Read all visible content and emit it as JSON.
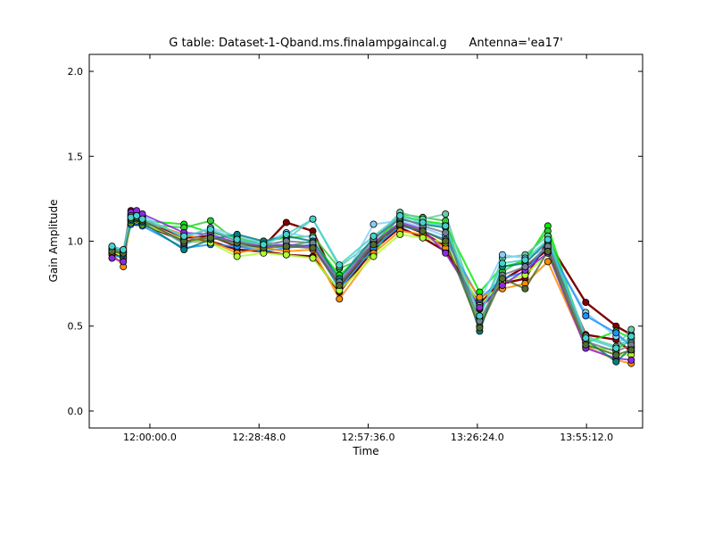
{
  "chart_data": {
    "type": "line",
    "title": "G table: Dataset-1-Qband.ms.finalampgaincal.g      Antenna='ea17'",
    "xlabel": "Time",
    "ylabel": "Gain Amplitude",
    "xlim": [
      "11:44:00",
      "14:10:00"
    ],
    "ylim": [
      -0.1,
      2.1
    ],
    "xticks": [
      "12:00:00.0",
      "12:28:48.0",
      "12:57:36.0",
      "13:26:24.0",
      "13:55:12.0"
    ],
    "yticks": [
      "0.0",
      "0.5",
      "1.0",
      "1.5",
      "2.0"
    ],
    "grid": false,
    "legend": "none",
    "x": [
      "11:50:00",
      "11:53:00",
      "11:55:00",
      "11:56:30",
      "11:58:00",
      "12:09:00",
      "12:16:00",
      "12:23:00",
      "12:30:00",
      "12:36:00",
      "12:43:00",
      "12:50:00",
      "12:59:00",
      "13:06:00",
      "13:12:00",
      "13:18:00",
      "13:27:00",
      "13:33:00",
      "13:39:00",
      "13:45:00",
      "13:55:00",
      "14:03:00",
      "14:07:00"
    ],
    "series": [
      {
        "color": "#800000",
        "marker": true,
        "values": [
          0.95,
          0.93,
          1.18,
          1.17,
          1.13,
          1.02,
          1.03,
          0.97,
          0.97,
          1.11,
          1.06,
          0.73,
          0.97,
          1.1,
          1.05,
          0.97,
          0.6,
          0.75,
          0.78,
          1.0,
          0.64,
          0.5,
          0.45
        ]
      },
      {
        "color": "#800000",
        "marker": true,
        "values": [
          0.93,
          0.9,
          1.15,
          1.14,
          1.1,
          1.0,
          1.0,
          0.95,
          0.94,
          0.92,
          0.91,
          0.7,
          0.95,
          1.08,
          1.02,
          0.94,
          0.63,
          0.77,
          0.85,
          0.95,
          0.45,
          0.42,
          0.35
        ]
      },
      {
        "color": "#00ee00",
        "marker": true,
        "values": [
          0.96,
          0.94,
          1.12,
          1.13,
          1.12,
          1.1,
          1.05,
          1.02,
          0.98,
          0.97,
          1.0,
          0.8,
          0.98,
          1.15,
          1.12,
          1.1,
          0.7,
          0.85,
          0.88,
          1.09,
          0.4,
          0.47,
          0.43
        ]
      },
      {
        "color": "#32cd32",
        "marker": true,
        "values": [
          0.94,
          0.92,
          1.1,
          1.12,
          1.1,
          1.08,
          1.12,
          1.0,
          1.0,
          1.02,
          1.03,
          0.84,
          0.92,
          1.16,
          1.14,
          1.12,
          0.5,
          0.82,
          0.9,
          1.06,
          0.38,
          0.36,
          0.42
        ]
      },
      {
        "color": "#66cdaa",
        "marker": true,
        "values": [
          0.95,
          0.93,
          1.13,
          1.15,
          1.14,
          0.98,
          1.03,
          0.98,
          0.95,
          1.01,
          1.13,
          0.85,
          1.0,
          1.17,
          1.13,
          1.16,
          0.55,
          0.9,
          0.92,
          1.03,
          0.44,
          0.38,
          0.48
        ]
      },
      {
        "color": "#87cefa",
        "marker": true,
        "values": [
          0.97,
          0.95,
          1.16,
          1.16,
          1.15,
          1.02,
          1.08,
          1.03,
          0.99,
          1.05,
          1.02,
          0.74,
          1.1,
          1.12,
          1.08,
          1.03,
          0.65,
          0.92,
          0.9,
          0.96,
          0.58,
          0.44,
          0.4
        ]
      },
      {
        "color": "#1e90ff",
        "marker": true,
        "values": [
          0.92,
          0.9,
          1.1,
          1.11,
          1.09,
          0.96,
          0.98,
          0.97,
          0.94,
          0.96,
          0.98,
          0.72,
          0.96,
          1.09,
          1.06,
          1.01,
          0.66,
          0.78,
          0.82,
          0.98,
          0.56,
          0.46,
          0.38
        ]
      },
      {
        "color": "#ff8c00",
        "marker": true,
        "values": [
          0.93,
          0.85,
          1.14,
          1.16,
          1.12,
          1.04,
          1.0,
          0.93,
          0.96,
          0.94,
          0.95,
          0.66,
          0.93,
          1.06,
          1.04,
          0.96,
          0.67,
          0.72,
          0.75,
          0.88,
          0.38,
          0.3,
          0.28
        ]
      },
      {
        "color": "#adff2f",
        "marker": true,
        "values": [
          0.94,
          0.91,
          1.11,
          1.12,
          1.1,
          1.01,
          0.99,
          0.91,
          0.93,
          0.92,
          0.9,
          0.71,
          0.91,
          1.04,
          1.02,
          0.99,
          0.62,
          0.76,
          0.8,
          0.93,
          0.4,
          0.33,
          0.33
        ]
      },
      {
        "color": "#8a2be2",
        "marker": true,
        "values": [
          0.9,
          0.88,
          1.17,
          1.18,
          1.16,
          1.05,
          1.04,
          0.99,
          0.97,
          0.98,
          0.97,
          0.75,
          0.99,
          1.11,
          1.07,
          0.93,
          0.61,
          0.74,
          0.83,
          0.93,
          0.37,
          0.31,
          0.3
        ]
      },
      {
        "color": "#008080",
        "marker": true,
        "values": [
          0.95,
          0.92,
          1.12,
          1.13,
          1.11,
          0.95,
          1.01,
          1.04,
          1.0,
          1.03,
          1.0,
          0.78,
          1.02,
          1.13,
          1.1,
          1.08,
          0.47,
          0.85,
          0.87,
          1.0,
          0.42,
          0.29,
          0.37
        ]
      },
      {
        "color": "#708090",
        "marker": true,
        "values": [
          0.96,
          0.94,
          1.15,
          1.14,
          1.13,
          0.99,
          1.06,
          1.0,
          0.98,
          1.0,
          0.99,
          0.76,
          1.01,
          1.14,
          1.09,
          1.05,
          0.53,
          0.8,
          0.85,
          0.97,
          0.41,
          0.35,
          0.39
        ]
      },
      {
        "color": "#556b2f",
        "marker": true,
        "values": [
          0.94,
          0.93,
          1.13,
          1.14,
          1.12,
          1.0,
          1.02,
          0.99,
          0.96,
          0.97,
          0.96,
          0.74,
          0.98,
          1.1,
          1.06,
          1.0,
          0.49,
          0.78,
          0.72,
          0.94,
          0.39,
          0.33,
          0.36
        ]
      },
      {
        "color": "#48d1cc",
        "marker": true,
        "values": [
          0.97,
          0.95,
          1.14,
          1.15,
          1.13,
          1.03,
          1.07,
          1.01,
          0.98,
          1.04,
          1.13,
          0.86,
          1.03,
          1.15,
          1.11,
          1.09,
          0.56,
          0.87,
          0.89,
          1.01,
          0.43,
          0.37,
          0.44
        ]
      }
    ]
  }
}
